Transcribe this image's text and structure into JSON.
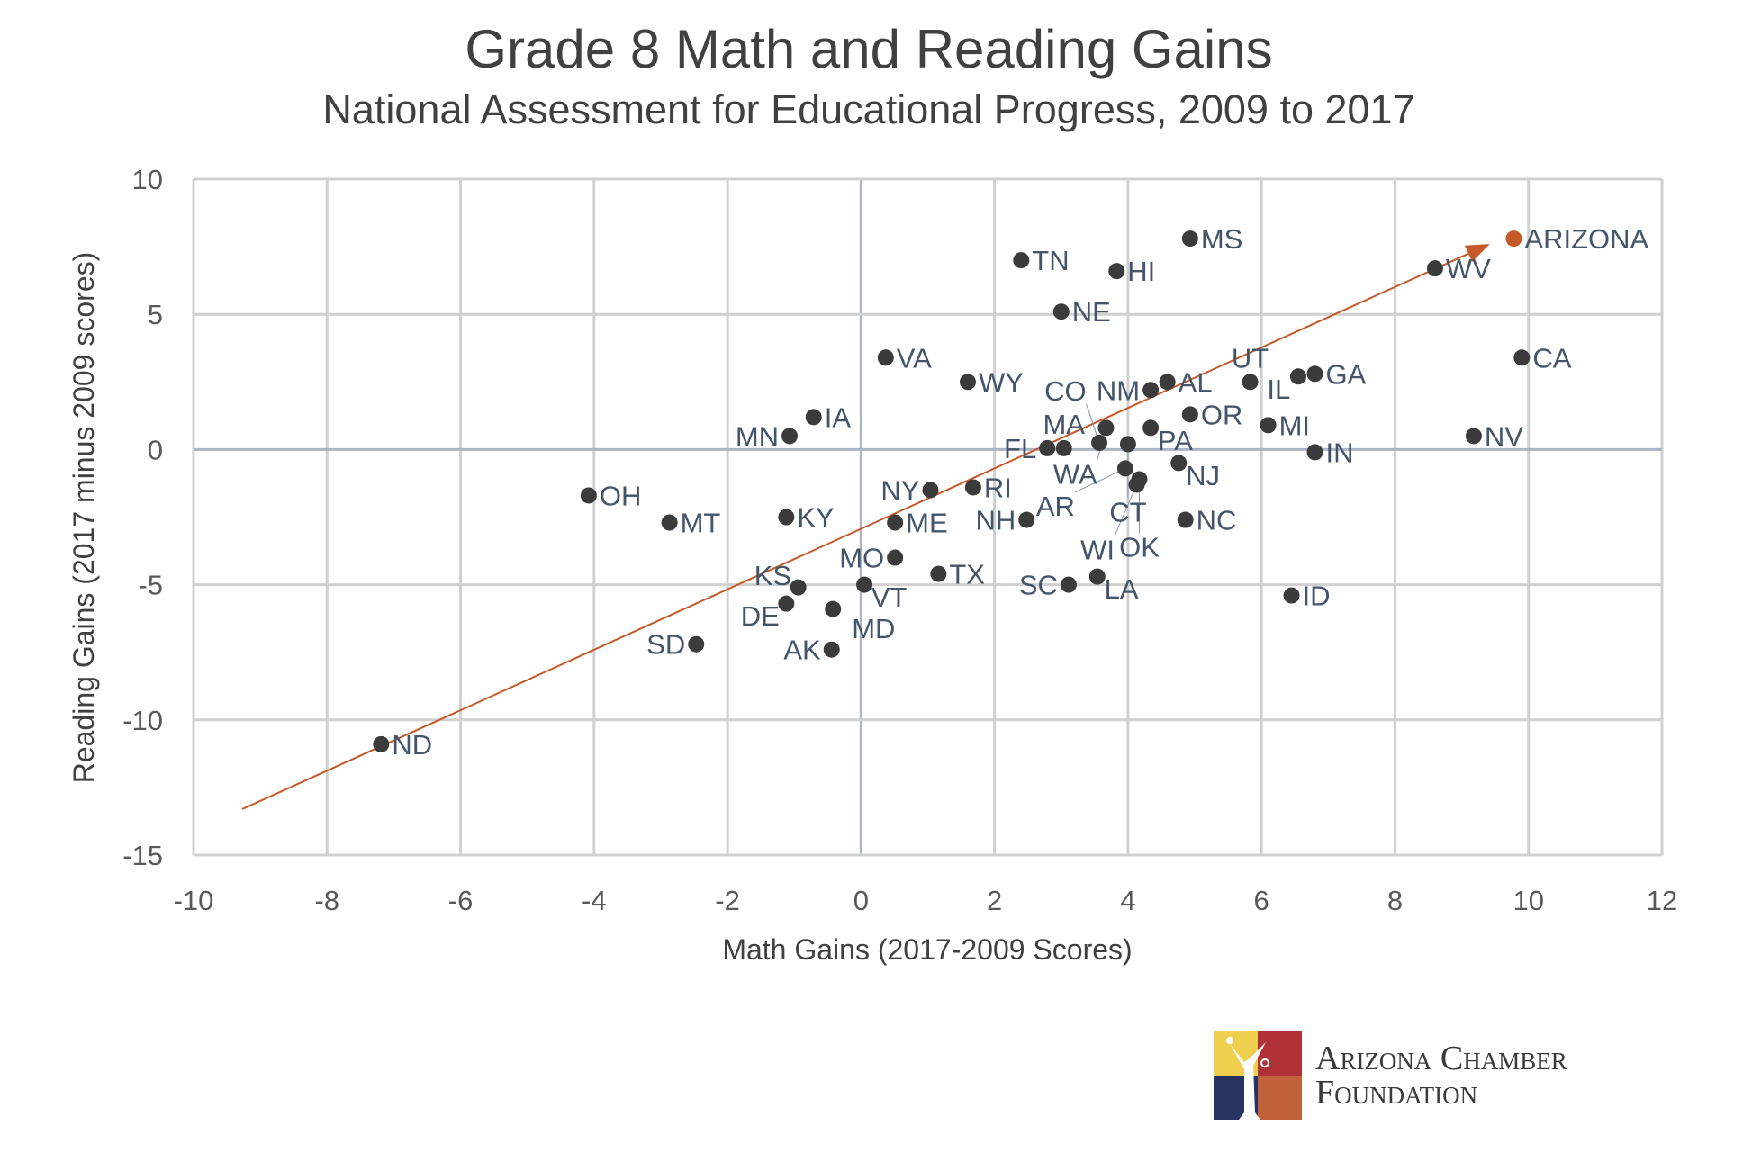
{
  "chart_data": {
    "type": "scatter",
    "title": "Grade 8 Math and Reading Gains",
    "subtitle": "National Assessment for Educational Progress, 2009 to 2017",
    "xlabel": "Math Gains (2017-2009 Scores)",
    "ylabel": "Reading Gains (2017 minus 2009 scores)",
    "xlim": [
      -10,
      12
    ],
    "ylim": [
      -15,
      10
    ],
    "xticks": [
      -10,
      -8,
      -6,
      -4,
      -2,
      0,
      2,
      4,
      6,
      8,
      10,
      12
    ],
    "yticks": [
      10,
      5,
      0,
      -5,
      -10,
      -15
    ],
    "grid": true,
    "colors": {
      "point": "#3b3b3b",
      "highlight": "#c55a28",
      "trend": "#c55a28",
      "grid": "#d0d0d0",
      "zero_axis": "#a9b4c6"
    },
    "trend_line": {
      "from": [
        -9.27,
        -13.3
      ],
      "to": [
        9.42,
        7.6
      ],
      "arrow": true
    },
    "points": [
      {
        "label": "ARIZONA",
        "x": 9.78,
        "y": 7.8,
        "highlight": true
      },
      {
        "label": "MS",
        "x": 4.93,
        "y": 7.8
      },
      {
        "label": "TN",
        "x": 2.4,
        "y": 7.0
      },
      {
        "label": "HI",
        "x": 3.83,
        "y": 6.6
      },
      {
        "label": "WV",
        "x": 8.6,
        "y": 6.7
      },
      {
        "label": "NE",
        "x": 3.0,
        "y": 5.1
      },
      {
        "label": "CA",
        "x": 9.9,
        "y": 3.4
      },
      {
        "label": "VA",
        "x": 0.37,
        "y": 3.4
      },
      {
        "label": "WY",
        "x": 1.6,
        "y": 2.5
      },
      {
        "label": "FL",
        "x": 2.79,
        "y": 0.05
      },
      {
        "label": "MA",
        "x": 3.04,
        "y": 0.05
      },
      {
        "label": "IA",
        "x": -0.71,
        "y": 1.2
      },
      {
        "label": "MN",
        "x": -1.07,
        "y": 0.5
      },
      {
        "label": "NM",
        "x": 4.34,
        "y": 2.2
      },
      {
        "label": "AL",
        "x": 4.59,
        "y": 2.5
      },
      {
        "label": "UT",
        "x": 5.83,
        "y": 2.5
      },
      {
        "label": "IL",
        "x": 6.55,
        "y": 2.7
      },
      {
        "label": "GA",
        "x": 6.8,
        "y": 2.8
      },
      {
        "label": "OR",
        "x": 4.93,
        "y": 1.3
      },
      {
        "label": "MI",
        "x": 6.1,
        "y": 0.9
      },
      {
        "label": "WA",
        "x": 3.67,
        "y": 0.8
      },
      {
        "label": "PA",
        "x": 4.34,
        "y": 0.8
      },
      {
        "label": "CO",
        "x": 3.57,
        "y": 0.25
      },
      {
        "label": "CT",
        "x": 4.0,
        "y": 0.2
      },
      {
        "label": "NV",
        "x": 9.18,
        "y": 0.5
      },
      {
        "label": "IN",
        "x": 6.8,
        "y": -0.1
      },
      {
        "label": "NJ",
        "x": 4.76,
        "y": -0.5
      },
      {
        "label": "AR",
        "x": 3.96,
        "y": -0.7
      },
      {
        "label": "OK",
        "x": 4.17,
        "y": -1.1
      },
      {
        "label": "WI",
        "x": 4.13,
        "y": -1.3
      },
      {
        "label": "NC",
        "x": 4.86,
        "y": -2.6
      },
      {
        "label": "NY",
        "x": 1.04,
        "y": -1.5
      },
      {
        "label": "RI",
        "x": 1.68,
        "y": -1.4
      },
      {
        "label": "OH",
        "x": -4.08,
        "y": -1.7
      },
      {
        "label": "KY",
        "x": -1.12,
        "y": -2.5
      },
      {
        "label": "MT",
        "x": -2.87,
        "y": -2.7
      },
      {
        "label": "ME",
        "x": 0.51,
        "y": -2.7
      },
      {
        "label": "NH",
        "x": 2.48,
        "y": -2.6
      },
      {
        "label": "MO",
        "x": 0.51,
        "y": -4.0
      },
      {
        "label": "TX",
        "x": 1.16,
        "y": -4.6
      },
      {
        "label": "LA",
        "x": 3.54,
        "y": -4.7
      },
      {
        "label": "SC",
        "x": 3.11,
        "y": -5.0
      },
      {
        "label": "VT",
        "x": 0.05,
        "y": -5.0
      },
      {
        "label": "KS",
        "x": -0.94,
        "y": -5.1
      },
      {
        "label": "ID",
        "x": 6.45,
        "y": -5.4
      },
      {
        "label": "DE",
        "x": -1.12,
        "y": -5.7
      },
      {
        "label": "MD",
        "x": -0.42,
        "y": -5.9
      },
      {
        "label": "SD",
        "x": -2.47,
        "y": -7.2
      },
      {
        "label": "AK",
        "x": -0.44,
        "y": -7.4
      },
      {
        "label": "ND",
        "x": -7.19,
        "y": -10.9
      }
    ]
  },
  "logo": {
    "line1": "Arizona Chamber",
    "line2": "Foundation"
  }
}
